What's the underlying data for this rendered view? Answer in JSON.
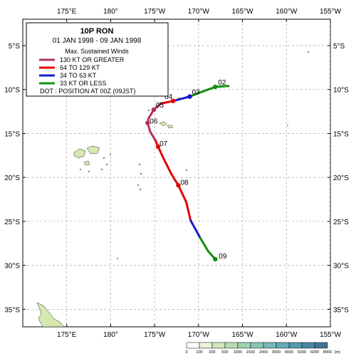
{
  "title": "10P  RON",
  "period": "01 JAN 1998 - 09 JAN 1998",
  "legend": {
    "heading": "Max. Sustained Winds",
    "items": [
      {
        "label": "130 KT OR GREATER",
        "color": "#b03060"
      },
      {
        "label": "64 TO 129 KT",
        "color": "#e00000"
      },
      {
        "label": "34 TO 63 KT",
        "color": "#1a1acc"
      },
      {
        "label": "33 KT OR LESS",
        "color": "#109010"
      }
    ],
    "dot_note": "DOT : POSITION AT 00Z (09JST)"
  },
  "axes": {
    "lon_ticks": [
      "175°E",
      "180°",
      "175°W",
      "170°W",
      "165°W",
      "160°W",
      "155°W"
    ],
    "lat_ticks": [
      "5°S",
      "10°S",
      "15°S",
      "20°S",
      "25°S",
      "30°S",
      "35°S"
    ]
  },
  "track": {
    "points": [
      {
        "lon": -166.6,
        "lat": -9.6,
        "cat": "td"
      },
      {
        "lon": -168.1,
        "lat": -9.7,
        "cat": "td"
      },
      {
        "lon": -170.0,
        "lat": -10.4,
        "cat": "td"
      },
      {
        "lon": -171.0,
        "lat": -10.8,
        "cat": "ts"
      },
      {
        "lon": -172.9,
        "lat": -11.3,
        "cat": "ty"
      },
      {
        "lon": -174.3,
        "lat": -11.6,
        "cat": "st"
      },
      {
        "lon": -175.1,
        "lat": -12.3,
        "cat": "st"
      },
      {
        "lon": -175.7,
        "lat": -13.3,
        "cat": "st"
      },
      {
        "lon": -175.8,
        "lat": -13.8,
        "cat": "st"
      },
      {
        "lon": -175.5,
        "lat": -14.8,
        "cat": "st"
      },
      {
        "lon": -174.9,
        "lat": -15.8,
        "cat": "ty"
      },
      {
        "lon": -174.6,
        "lat": -16.5,
        "cat": "ty"
      },
      {
        "lon": -174.0,
        "lat": -17.8,
        "cat": "ty"
      },
      {
        "lon": -173.1,
        "lat": -19.6,
        "cat": "ty"
      },
      {
        "lon": -172.3,
        "lat": -20.9,
        "cat": "ty"
      },
      {
        "lon": -171.4,
        "lat": -22.8,
        "cat": "ty"
      },
      {
        "lon": -170.9,
        "lat": -24.9,
        "cat": "ts"
      },
      {
        "lon": -169.8,
        "lat": -26.9,
        "cat": "td"
      },
      {
        "lon": -168.9,
        "lat": -28.4,
        "cat": "td"
      },
      {
        "lon": -168.1,
        "lat": -29.3,
        "cat": "td"
      }
    ],
    "daily": [
      {
        "label": "02",
        "lon": -168.1,
        "lat": -9.7,
        "cat": "td"
      },
      {
        "label": "03",
        "lon": -171.0,
        "lat": -10.8,
        "cat": "ts"
      },
      {
        "label": "04",
        "lon": -172.9,
        "lat": -11.3,
        "cat": "ty"
      },
      {
        "label": "05",
        "lon": -175.1,
        "lat": -12.3,
        "cat": "st"
      },
      {
        "label": "06",
        "lon": -175.8,
        "lat": -13.8,
        "cat": "st"
      },
      {
        "label": "07",
        "lon": -174.6,
        "lat": -16.5,
        "cat": "ty"
      },
      {
        "label": "08",
        "lon": -172.3,
        "lat": -20.9,
        "cat": "ty"
      },
      {
        "label": "09",
        "lon": -168.1,
        "lat": -29.3,
        "cat": "td"
      }
    ],
    "colors": {
      "st": "#b03060",
      "ty": "#e00000",
      "ts": "#1a1acc",
      "td": "#109010"
    }
  },
  "elevation_scale": {
    "values": [
      "0",
      "100",
      "200",
      "500",
      "1000",
      "1500",
      "2000",
      "3000",
      "4000",
      "5000",
      "6000",
      "8000"
    ],
    "unit": "[m]",
    "colors": [
      "#ffffff",
      "#e8f4d8",
      "#cfe8b8",
      "#b6dcb0",
      "#9fd0b0",
      "#88c4b4",
      "#74b8b8",
      "#62aab8",
      "#5498b0",
      "#4a86a4",
      "#427494"
    ]
  }
}
